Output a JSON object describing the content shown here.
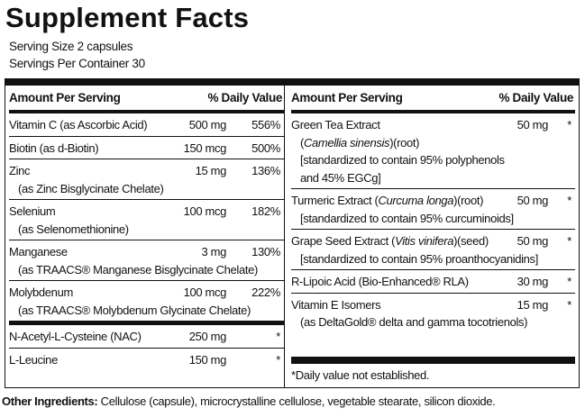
{
  "title": "Supplement Facts",
  "serving_size": "Serving Size 2 capsules",
  "servings_per_container": "Servings Per Container 30",
  "headers": {
    "amount": "Amount Per Serving",
    "daily_value": "% Daily Value"
  },
  "left_rows": [
    {
      "lines": [
        "Vitamin C (as Ascorbic Acid)"
      ],
      "amount": "500 mg",
      "dv": "556%"
    },
    {
      "lines": [
        "Biotin (as d-Biotin)"
      ],
      "amount": "150 mcg",
      "dv": "500%"
    },
    {
      "lines": [
        "Zinc",
        "(as Zinc Bisglycinate Chelate)"
      ],
      "amount": "15 mg",
      "dv": "136%"
    },
    {
      "lines": [
        "Selenium",
        "(as Selenomethionine)"
      ],
      "amount": "100 mcg",
      "dv": "182%"
    },
    {
      "lines": [
        "Manganese",
        "(as TRAACS® Manganese Bisglycinate Chelate)"
      ],
      "amount": "3 mg",
      "dv": "130%"
    },
    {
      "lines": [
        "Molybdenum",
        "(as TRAACS® Molybdenum Glycinate Chelate)"
      ],
      "amount": "100 mcg",
      "dv": "222%"
    },
    {
      "lines": [
        "N-Acetyl-L-Cysteine (NAC)"
      ],
      "amount": "250 mg",
      "dv": "*"
    },
    {
      "lines": [
        "L-Leucine"
      ],
      "amount": "150 mg",
      "dv": "*"
    }
  ],
  "right_rows": [
    {
      "lines": [
        "Green Tea Extract",
        [
          "(",
          "Camellia sinensis",
          ")(root)"
        ],
        "[standardized to contain 95% polyphenols",
        "and 45% EGCg]"
      ],
      "amount": "50 mg",
      "dv": "*"
    },
    {
      "lines": [
        [
          "Turmeric Extract (",
          "Curcuma longa",
          ")(root)"
        ],
        "[standardized to contain 95% curcuminoids]"
      ],
      "amount": "50 mg",
      "dv": "*"
    },
    {
      "lines": [
        [
          "Grape Seed Extract (",
          "Vitis vinifera",
          ")(seed)"
        ],
        "[standardized to contain 95% proanthocyanidins]"
      ],
      "amount": "50 mg",
      "dv": "*"
    },
    {
      "lines": [
        "R-Lipoic Acid (Bio-Enhanced® RLA)"
      ],
      "amount": "30 mg",
      "dv": "*"
    },
    {
      "lines": [
        "Vitamin E Isomers",
        "(as DeltaGold® delta and gamma tocotrienols)"
      ],
      "amount": "15 mg",
      "dv": "*"
    }
  ],
  "footnote": "*Daily value not established.",
  "other_ingredients": {
    "label": "Other Ingredients:",
    "text": "Cellulose (capsule), microcrystalline cellulose, vegetable stearate, silicon dioxide."
  }
}
